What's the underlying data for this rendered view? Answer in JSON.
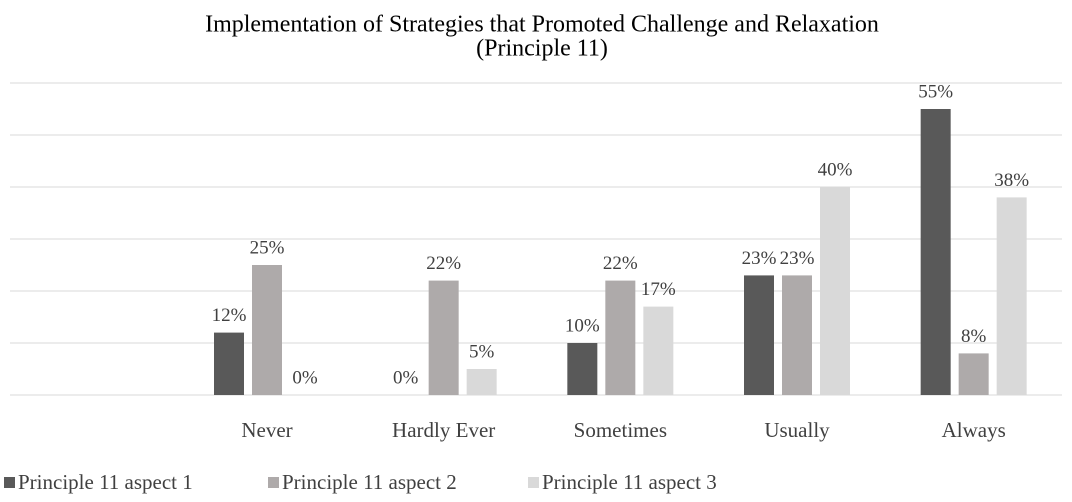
{
  "chart_data": {
    "type": "bar",
    "title": [
      "Implementation of Strategies that Promoted Challenge and Relaxation",
      "(Principle 11)"
    ],
    "categories": [
      null,
      "Never",
      "Hardly Ever",
      "Sometimes",
      "Usually",
      "Always"
    ],
    "series": [
      {
        "name": "Principle 11 aspect 1",
        "color": "#595959",
        "values": [
          null,
          12,
          0,
          10,
          23,
          55
        ],
        "value_labels": [
          null,
          "12%",
          "0%",
          "10%",
          "23%",
          "55%"
        ]
      },
      {
        "name": "Principle 11 aspect 2",
        "color": "#aeaaaa",
        "values": [
          null,
          25,
          22,
          22,
          23,
          8
        ],
        "value_labels": [
          null,
          "25%",
          "22%",
          "22%",
          "23%",
          "8%"
        ]
      },
      {
        "name": "Principle 11 aspect 3",
        "color": "#d9d9d9",
        "values": [
          null,
          0,
          5,
          17,
          40,
          38
        ],
        "value_labels": [
          null,
          "0%",
          "5%",
          "17%",
          "40%",
          "38%"
        ]
      }
    ],
    "ylim": [
      0,
      60
    ],
    "yticks": [
      0,
      10,
      20,
      30,
      40,
      50,
      60
    ],
    "grid": true,
    "legend": "bottom"
  }
}
